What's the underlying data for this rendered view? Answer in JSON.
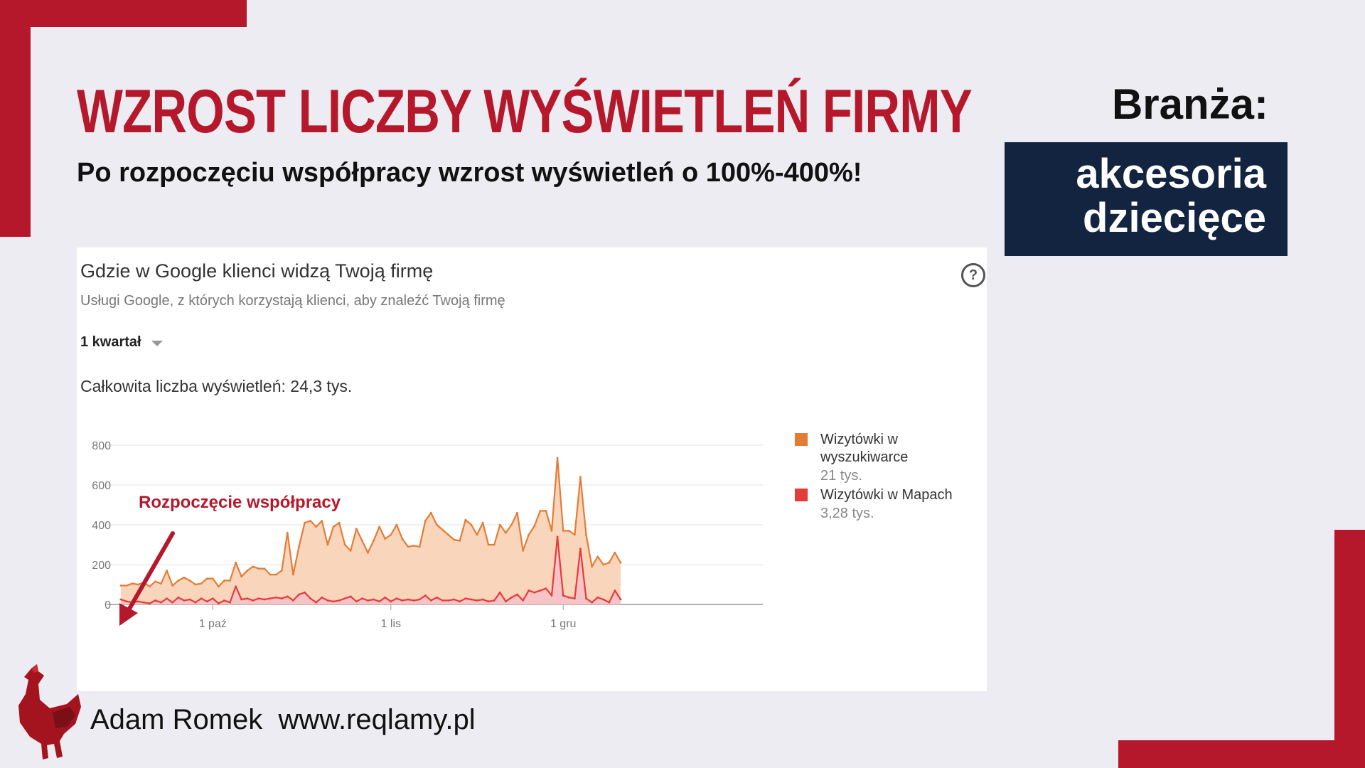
{
  "header": {
    "title": "WZROST LICZBY WYŚWIETLEŃ FIRMY",
    "subtitle": "Po rozpoczęciu współpracy wzrost wyświetleń o 100%-400%!"
  },
  "industry": {
    "label": "Branża:",
    "value_line1": "akcesoria",
    "value_line2": "dziecięce"
  },
  "card": {
    "title": "Gdzie w Google klienci widzą Twoją firmę",
    "subtitle": "Usługi Google, z których korzystają klienci, aby znaleźć Twoją firmę",
    "period": "1 kwartał",
    "total": "Całkowita liczba wyświetleń: 24,3 tys.",
    "help_icon_glyph": "?"
  },
  "chart_data": {
    "type": "area",
    "ylim": [
      0,
      800
    ],
    "y_ticks": [
      0,
      200,
      400,
      600,
      800
    ],
    "x_tick_labels": [
      {
        "label": "1 paź",
        "index": 16
      },
      {
        "label": "1 lis",
        "index": 47
      },
      {
        "label": "1 gru",
        "index": 77
      }
    ],
    "annotation": "Rozpoczęcie współpracy",
    "series": [
      {
        "name": "Wizytówki w wyszukiwarce",
        "total_label": "21 tys.",
        "color": "#e57c35",
        "fill": "#f8d5bb",
        "values": [
          95,
          95,
          105,
          100,
          110,
          90,
          115,
          105,
          170,
          95,
          120,
          135,
          120,
          100,
          105,
          130,
          130,
          90,
          120,
          120,
          210,
          140,
          170,
          190,
          180,
          180,
          150,
          150,
          170,
          360,
          150,
          290,
          410,
          420,
          390,
          420,
          300,
          390,
          410,
          300,
          270,
          380,
          320,
          260,
          320,
          390,
          330,
          350,
          400,
          330,
          290,
          295,
          290,
          420,
          460,
          400,
          375,
          350,
          325,
          320,
          425,
          400,
          350,
          410,
          300,
          300,
          400,
          360,
          400,
          460,
          270,
          350,
          395,
          470,
          470,
          370,
          735,
          370,
          370,
          350,
          640,
          350,
          190,
          240,
          200,
          210,
          260,
          210
        ]
      },
      {
        "name": "Wizytówki w Mapach",
        "total_label": "3,28 tys.",
        "color": "#e53b3b",
        "fill": "#f6c4c6",
        "values": [
          25,
          15,
          10,
          15,
          10,
          5,
          20,
          10,
          30,
          10,
          35,
          20,
          25,
          10,
          30,
          15,
          30,
          5,
          20,
          10,
          90,
          25,
          30,
          20,
          30,
          25,
          30,
          35,
          30,
          40,
          20,
          50,
          60,
          30,
          10,
          35,
          20,
          15,
          20,
          30,
          40,
          15,
          30,
          20,
          25,
          15,
          35,
          15,
          30,
          20,
          25,
          20,
          25,
          45,
          20,
          35,
          20,
          20,
          25,
          15,
          30,
          25,
          20,
          25,
          15,
          20,
          60,
          15,
          35,
          50,
          20,
          70,
          60,
          70,
          80,
          45,
          340,
          45,
          35,
          30,
          280,
          30,
          10,
          35,
          25,
          10,
          70,
          25
        ]
      }
    ]
  },
  "footer": {
    "author": "Adam Romek",
    "website": "www.reqlamy.pl"
  },
  "colors": {
    "accent_red": "#b5182b",
    "navy": "#12243f",
    "background": "#ececf2"
  },
  "icons": {
    "help": "question-circle-icon",
    "dropdown": "caret-down-icon",
    "logo": "rooster-logo-icon",
    "arrow": "arrow-annotation-icon"
  }
}
